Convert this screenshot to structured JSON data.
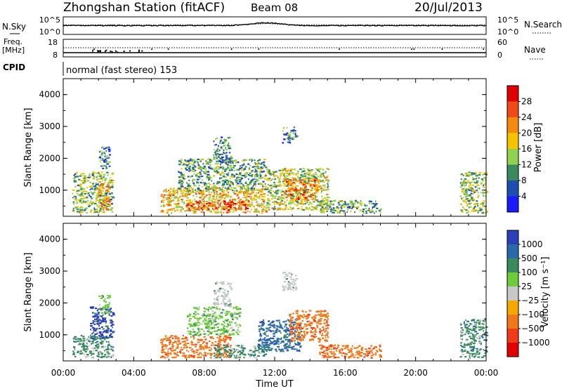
{
  "header": {
    "title": "Zhongshan Station (fitACF)",
    "beam": "Beam 08",
    "date": "20/Jul/2013"
  },
  "noise_panel": {
    "left_label": "N.Sky",
    "left_ticks": [
      "10^5",
      "10^0"
    ],
    "right_label": "N.Search",
    "right_ticks": [
      "10^5",
      "10^0"
    ]
  },
  "freq_panel": {
    "left_label_line1": "Freq.",
    "left_label_line2": "[MHz]",
    "left_ticks": [
      "18",
      "8"
    ],
    "right_label": "Nave",
    "right_ticks": [
      "60",
      "0"
    ]
  },
  "cpid": {
    "label": "CPID",
    "value": "normal (fast stereo) 153"
  },
  "power_panel": {
    "ylabel": "Slant Range [km]",
    "yticks": [
      "4000",
      "3000",
      "2000",
      "1000"
    ],
    "colorbar_label": "Power [dB]",
    "colorbar_ticks": [
      "28",
      "24",
      "20",
      "16",
      "12",
      "8",
      "4"
    ],
    "colorbar_colors": [
      "#e00000",
      "#f04a1a",
      "#f58a10",
      "#f5c400",
      "#92d050",
      "#3a8a5c",
      "#1e4fb0",
      "#1a1aff"
    ]
  },
  "velocity_panel": {
    "ylabel": "Slant Range [km]",
    "yticks": [
      "4000",
      "3000",
      "2000",
      "1000"
    ],
    "colorbar_label": "Velocity [m s⁻¹]",
    "colorbar_ticks": [
      "1000",
      "500",
      "100",
      "25",
      "−25",
      "−100",
      "−500",
      "−1000"
    ],
    "colorbar_colors": [
      "#2a3fb8",
      "#2a6aa8",
      "#3a8a5c",
      "#6ccc3a",
      "#c8c8c8",
      "#f5a800",
      "#f07818",
      "#f03a1a",
      "#e00000"
    ]
  },
  "xaxis": {
    "label": "Time UT",
    "ticks": [
      "00:00",
      "04:00",
      "08:00",
      "12:00",
      "16:00",
      "20:00",
      "00:00"
    ]
  },
  "chart_data": [
    {
      "type": "heatmap",
      "title": "Power [dB]",
      "xlabel": "Time UT",
      "ylabel": "Slant Range [km]",
      "xlim": [
        "00:00",
        "24:00"
      ],
      "ylim": [
        180,
        4500
      ],
      "clim": [
        0,
        30
      ],
      "regions": [
        {
          "t": [
            0.5,
            2.8
          ],
          "r": [
            300,
            1600
          ],
          "dominant_db": 12
        },
        {
          "t": [
            1.9,
            2.6
          ],
          "r": [
            400,
            1300
          ],
          "dominant_db": 20
        },
        {
          "t": [
            2.0,
            2.6
          ],
          "r": [
            1700,
            2400
          ],
          "dominant_db": 8
        },
        {
          "t": [
            5.5,
            11.5
          ],
          "r": [
            300,
            1100
          ],
          "dominant_db": 18
        },
        {
          "t": [
            7.0,
            10.5
          ],
          "r": [
            400,
            700
          ],
          "dominant_db": 26
        },
        {
          "t": [
            6.5,
            11.5
          ],
          "r": [
            1000,
            2000
          ],
          "dominant_db": 10
        },
        {
          "t": [
            8.5,
            9.5
          ],
          "r": [
            1900,
            2700
          ],
          "dominant_db": 8
        },
        {
          "t": [
            12.4,
            13.2
          ],
          "r": [
            2500,
            3000
          ],
          "dominant_db": 6
        },
        {
          "t": [
            11.5,
            15.0
          ],
          "r": [
            400,
            1700
          ],
          "dominant_db": 14
        },
        {
          "t": [
            12.5,
            14.5
          ],
          "r": [
            700,
            1400
          ],
          "dominant_db": 22
        },
        {
          "t": [
            14.5,
            18.0
          ],
          "r": [
            300,
            700
          ],
          "dominant_db": 10
        },
        {
          "t": [
            22.5,
            24.0
          ],
          "r": [
            300,
            1600
          ],
          "dominant_db": 12
        }
      ]
    },
    {
      "type": "heatmap",
      "title": "Velocity [m s⁻¹]",
      "xlabel": "Time UT",
      "ylabel": "Slant Range [km]",
      "xlim": [
        "00:00",
        "24:00"
      ],
      "ylim": [
        180,
        4500
      ],
      "clim": [
        -1000,
        1000
      ],
      "regions": [
        {
          "t": [
            0.5,
            2.8
          ],
          "r": [
            300,
            1000
          ],
          "dominant_ms": 100
        },
        {
          "t": [
            1.5,
            2.8
          ],
          "r": [
            900,
            1900
          ],
          "dominant_ms": 1000
        },
        {
          "t": [
            2.0,
            2.6
          ],
          "r": [
            1700,
            2300
          ],
          "dominant_ms": 25
        },
        {
          "t": [
            5.5,
            9.5
          ],
          "r": [
            300,
            1000
          ],
          "dominant_ms": -500
        },
        {
          "t": [
            8.5,
            11.5
          ],
          "r": [
            300,
            700
          ],
          "dominant_ms": 100
        },
        {
          "t": [
            7.0,
            10.0
          ],
          "r": [
            1000,
            1900
          ],
          "dominant_ms": 25
        },
        {
          "t": [
            8.5,
            9.5
          ],
          "r": [
            1900,
            2700
          ],
          "dominant_ms": 0
        },
        {
          "t": [
            12.4,
            13.2
          ],
          "r": [
            2400,
            3000
          ],
          "dominant_ms": 0
        },
        {
          "t": [
            11.0,
            13.5
          ],
          "r": [
            500,
            1500
          ],
          "dominant_ms": 500
        },
        {
          "t": [
            12.8,
            15.0
          ],
          "r": [
            800,
            1800
          ],
          "dominant_ms": -500
        },
        {
          "t": [
            14.5,
            18.0
          ],
          "r": [
            300,
            700
          ],
          "dominant_ms": -500
        },
        {
          "t": [
            22.5,
            24.0
          ],
          "r": [
            300,
            1500
          ],
          "dominant_ms": 100
        }
      ]
    }
  ]
}
